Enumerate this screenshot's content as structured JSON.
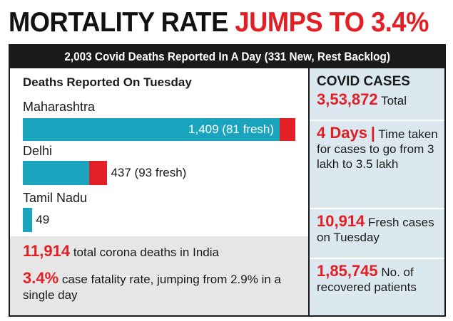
{
  "headline": {
    "part1": "MORTALITY RATE",
    "part2": "JUMPS TO 3.4%"
  },
  "subhead": "2,003 Covid Deaths Reported In A Day (331 New, Rest Backlog)",
  "left_panel": {
    "title": "Deaths Reported On Tuesday"
  },
  "chart_data": {
    "type": "bar",
    "title": "Deaths Reported On Tuesday",
    "categories": [
      "Maharashtra",
      "Delhi",
      "Tamil Nadu"
    ],
    "series": [
      {
        "name": "backlog",
        "values": [
          1328,
          344,
          49
        ]
      },
      {
        "name": "fresh",
        "values": [
          81,
          93,
          0
        ]
      }
    ],
    "totals": [
      1409,
      437,
      49
    ],
    "data_labels": [
      "1,409 (81 fresh)",
      "437 (93 fresh)",
      "49"
    ],
    "colors": {
      "backlog": "#1aa4bd",
      "fresh": "#e31e24"
    },
    "xlim": [
      0,
      1409
    ]
  },
  "stats": [
    {
      "value": "11,914",
      "text": "total corona deaths in India"
    },
    {
      "value": "3.4%",
      "text": "case fatality rate, jumping from 2.9% in a single day"
    }
  ],
  "covid_cases": {
    "title": "COVID CASES",
    "total_value": "3,53,872",
    "total_label": "Total",
    "days_value": "4 Days",
    "days_separator": "|",
    "days_text": "Time taken for cases to go from 3 lakh to 3.5 lakh",
    "fresh_value": "10,914",
    "fresh_text": "Fresh cases on Tuesday",
    "recovered_value": "1,85,745",
    "recovered_text": "No. of recovered patients"
  },
  "colors": {
    "accent_red": "#e31e24",
    "teal": "#1aa4bd",
    "panel_blue": "#dbe8ef",
    "panel_grey": "#e6e6e6",
    "dark": "#1a1a1a"
  }
}
